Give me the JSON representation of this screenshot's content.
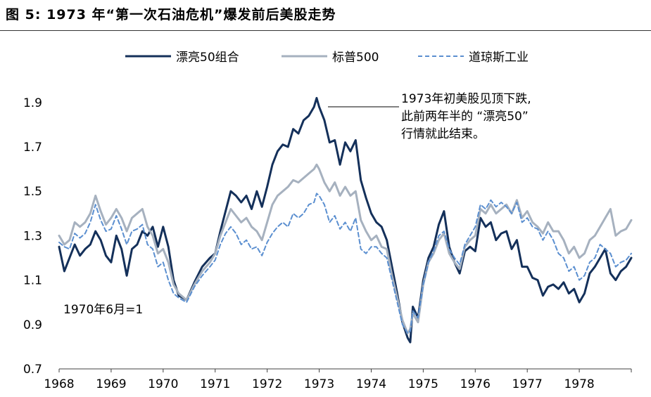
{
  "figure": {
    "label": "图 5:",
    "title": "1973 年“第一次石油危机”爆发前后美股走势"
  },
  "chart_data": {
    "type": "line",
    "title": "1973 年“第一次石油危机”爆发前后美股走势",
    "xlabel": "",
    "ylabel": "",
    "x_ticks": [
      "1968",
      "1969",
      "1970",
      "1971",
      "1972",
      "1973",
      "1974",
      "1975",
      "1976",
      "1977",
      "1978"
    ],
    "y_ticks": [
      "0.7",
      "0.9",
      "1.1",
      "1.3",
      "1.5",
      "1.7",
      "1.9"
    ],
    "xlim": [
      1968.0,
      1979.0
    ],
    "ylim": [
      0.7,
      1.95
    ],
    "grid": false,
    "legend_position": "top",
    "annotations": [
      {
        "lines": [
          "1973年初美股见顶下跌,",
          "此前两年半的 “漂亮50”",
          "行情就此结束。"
        ],
        "x": 1972.95,
        "y": 1.84
      },
      {
        "lines": [
          "1970年6月=1"
        ],
        "x": 1968.1,
        "y": 0.98
      }
    ],
    "series": [
      {
        "name": "漂亮50组合",
        "color": "#14305a",
        "dash": "solid",
        "width": 3,
        "x": [
          1968.0,
          1968.1,
          1968.2,
          1968.3,
          1968.4,
          1968.5,
          1968.6,
          1968.7,
          1968.8,
          1968.9,
          1969.0,
          1969.1,
          1969.2,
          1969.3,
          1969.4,
          1969.5,
          1969.6,
          1969.7,
          1969.8,
          1969.9,
          1970.0,
          1970.1,
          1970.2,
          1970.3,
          1970.45,
          1970.6,
          1970.75,
          1970.9,
          1971.0,
          1971.1,
          1971.2,
          1971.3,
          1971.4,
          1971.5,
          1971.6,
          1971.7,
          1971.8,
          1971.9,
          1972.0,
          1972.1,
          1972.2,
          1972.3,
          1972.4,
          1972.5,
          1972.6,
          1972.7,
          1972.8,
          1972.9,
          1972.95,
          1973.0,
          1973.1,
          1973.2,
          1973.3,
          1973.4,
          1973.5,
          1973.6,
          1973.7,
          1973.8,
          1973.9,
          1974.0,
          1974.1,
          1974.2,
          1974.3,
          1974.4,
          1974.5,
          1974.6,
          1974.7,
          1974.75,
          1974.8,
          1974.9,
          1975.0,
          1975.1,
          1975.2,
          1975.3,
          1975.4,
          1975.5,
          1975.6,
          1975.7,
          1975.8,
          1975.9,
          1976.0,
          1976.1,
          1976.2,
          1976.3,
          1976.4,
          1976.5,
          1976.6,
          1976.7,
          1976.8,
          1976.9,
          1977.0,
          1977.1,
          1977.2,
          1977.3,
          1977.4,
          1977.5,
          1977.6,
          1977.7,
          1977.8,
          1977.9,
          1978.0,
          1978.1,
          1978.2,
          1978.3,
          1978.4,
          1978.5,
          1978.6,
          1978.7,
          1978.8,
          1978.9,
          1979.0
        ],
        "y": [
          1.25,
          1.14,
          1.2,
          1.26,
          1.21,
          1.24,
          1.26,
          1.32,
          1.28,
          1.21,
          1.18,
          1.3,
          1.24,
          1.12,
          1.24,
          1.26,
          1.32,
          1.3,
          1.34,
          1.25,
          1.34,
          1.25,
          1.1,
          1.03,
          1.01,
          1.09,
          1.16,
          1.2,
          1.22,
          1.32,
          1.41,
          1.5,
          1.48,
          1.45,
          1.48,
          1.42,
          1.5,
          1.43,
          1.52,
          1.62,
          1.68,
          1.71,
          1.7,
          1.78,
          1.76,
          1.82,
          1.84,
          1.88,
          1.92,
          1.88,
          1.82,
          1.72,
          1.73,
          1.62,
          1.72,
          1.68,
          1.73,
          1.55,
          1.47,
          1.4,
          1.36,
          1.34,
          1.28,
          1.16,
          1.04,
          0.91,
          0.84,
          0.82,
          0.98,
          0.93,
          1.1,
          1.2,
          1.25,
          1.35,
          1.41,
          1.25,
          1.18,
          1.13,
          1.23,
          1.25,
          1.23,
          1.38,
          1.34,
          1.36,
          1.28,
          1.31,
          1.32,
          1.24,
          1.28,
          1.16,
          1.16,
          1.11,
          1.1,
          1.03,
          1.07,
          1.08,
          1.06,
          1.09,
          1.04,
          1.06,
          1.0,
          1.04,
          1.13,
          1.16,
          1.2,
          1.24,
          1.13,
          1.1,
          1.14,
          1.16,
          1.2
        ]
      },
      {
        "name": "标普500",
        "color": "#a6b1bf",
        "dash": "solid",
        "width": 3,
        "x": [
          1968.0,
          1968.1,
          1968.2,
          1968.3,
          1968.4,
          1968.5,
          1968.6,
          1968.7,
          1968.8,
          1968.9,
          1969.0,
          1969.1,
          1969.2,
          1969.3,
          1969.4,
          1969.5,
          1969.6,
          1969.7,
          1969.8,
          1969.9,
          1970.0,
          1970.1,
          1970.2,
          1970.3,
          1970.45,
          1970.6,
          1970.75,
          1970.9,
          1971.0,
          1971.1,
          1971.2,
          1971.3,
          1971.4,
          1971.5,
          1971.6,
          1971.7,
          1971.8,
          1971.9,
          1972.0,
          1972.1,
          1972.2,
          1972.3,
          1972.4,
          1972.5,
          1972.6,
          1972.7,
          1972.8,
          1972.9,
          1972.95,
          1973.0,
          1973.1,
          1973.2,
          1973.3,
          1973.4,
          1973.5,
          1973.6,
          1973.7,
          1973.8,
          1973.9,
          1974.0,
          1974.1,
          1974.2,
          1974.3,
          1974.4,
          1974.5,
          1974.6,
          1974.7,
          1974.75,
          1974.8,
          1974.9,
          1975.0,
          1975.1,
          1975.2,
          1975.3,
          1975.4,
          1975.5,
          1975.6,
          1975.7,
          1975.8,
          1975.9,
          1976.0,
          1976.1,
          1976.2,
          1976.3,
          1976.4,
          1976.5,
          1976.6,
          1976.7,
          1976.8,
          1976.9,
          1977.0,
          1977.1,
          1977.2,
          1977.3,
          1977.4,
          1977.5,
          1977.6,
          1977.7,
          1977.8,
          1977.9,
          1978.0,
          1978.1,
          1978.2,
          1978.3,
          1978.4,
          1978.5,
          1978.6,
          1978.7,
          1978.8,
          1978.9,
          1979.0
        ],
        "y": [
          1.3,
          1.26,
          1.28,
          1.36,
          1.34,
          1.36,
          1.4,
          1.48,
          1.41,
          1.35,
          1.38,
          1.42,
          1.38,
          1.32,
          1.38,
          1.4,
          1.42,
          1.34,
          1.3,
          1.22,
          1.24,
          1.18,
          1.08,
          1.04,
          1.01,
          1.08,
          1.14,
          1.18,
          1.22,
          1.3,
          1.36,
          1.42,
          1.39,
          1.36,
          1.38,
          1.34,
          1.32,
          1.28,
          1.36,
          1.44,
          1.48,
          1.5,
          1.52,
          1.55,
          1.54,
          1.56,
          1.58,
          1.6,
          1.62,
          1.6,
          1.54,
          1.5,
          1.54,
          1.48,
          1.52,
          1.48,
          1.5,
          1.37,
          1.32,
          1.28,
          1.3,
          1.25,
          1.24,
          1.12,
          1.02,
          0.92,
          0.86,
          0.88,
          0.95,
          0.91,
          1.08,
          1.18,
          1.22,
          1.28,
          1.31,
          1.22,
          1.18,
          1.15,
          1.25,
          1.28,
          1.3,
          1.42,
          1.4,
          1.44,
          1.4,
          1.42,
          1.44,
          1.4,
          1.46,
          1.38,
          1.41,
          1.36,
          1.34,
          1.31,
          1.36,
          1.32,
          1.32,
          1.28,
          1.22,
          1.25,
          1.2,
          1.22,
          1.28,
          1.3,
          1.34,
          1.38,
          1.42,
          1.3,
          1.32,
          1.33,
          1.37
        ]
      },
      {
        "name": "道琼斯工业",
        "color": "#5b8fd0",
        "dash": "dashed",
        "width": 2,
        "x": [
          1968.0,
          1968.1,
          1968.2,
          1968.3,
          1968.4,
          1968.5,
          1968.6,
          1968.7,
          1968.8,
          1968.9,
          1969.0,
          1969.1,
          1969.2,
          1969.3,
          1969.4,
          1969.5,
          1969.6,
          1969.7,
          1969.8,
          1969.9,
          1970.0,
          1970.1,
          1970.2,
          1970.3,
          1970.45,
          1970.6,
          1970.75,
          1970.9,
          1971.0,
          1971.1,
          1971.2,
          1971.3,
          1971.4,
          1971.5,
          1971.6,
          1971.7,
          1971.8,
          1971.9,
          1972.0,
          1972.1,
          1972.2,
          1972.3,
          1972.4,
          1972.5,
          1972.6,
          1972.7,
          1972.8,
          1972.9,
          1972.95,
          1973.0,
          1973.1,
          1973.2,
          1973.3,
          1973.4,
          1973.5,
          1973.6,
          1973.7,
          1973.8,
          1973.9,
          1974.0,
          1974.1,
          1974.2,
          1974.3,
          1974.4,
          1974.5,
          1974.6,
          1974.7,
          1974.75,
          1974.8,
          1974.9,
          1975.0,
          1975.1,
          1975.2,
          1975.3,
          1975.4,
          1975.5,
          1975.6,
          1975.7,
          1975.8,
          1975.9,
          1976.0,
          1976.1,
          1976.2,
          1976.3,
          1976.4,
          1976.5,
          1976.6,
          1976.7,
          1976.8,
          1976.9,
          1977.0,
          1977.1,
          1977.2,
          1977.3,
          1977.4,
          1977.5,
          1977.6,
          1977.7,
          1977.8,
          1977.9,
          1978.0,
          1978.1,
          1978.2,
          1978.3,
          1978.4,
          1978.5,
          1978.6,
          1978.7,
          1978.8,
          1978.9,
          1979.0
        ],
        "y": [
          1.27,
          1.25,
          1.24,
          1.31,
          1.29,
          1.31,
          1.36,
          1.44,
          1.37,
          1.32,
          1.33,
          1.39,
          1.33,
          1.26,
          1.32,
          1.33,
          1.35,
          1.26,
          1.24,
          1.16,
          1.18,
          1.1,
          1.04,
          1.02,
          1.0,
          1.07,
          1.12,
          1.16,
          1.19,
          1.26,
          1.31,
          1.34,
          1.31,
          1.26,
          1.28,
          1.24,
          1.25,
          1.21,
          1.27,
          1.31,
          1.34,
          1.36,
          1.34,
          1.4,
          1.38,
          1.4,
          1.44,
          1.45,
          1.49,
          1.48,
          1.44,
          1.36,
          1.39,
          1.33,
          1.36,
          1.32,
          1.38,
          1.24,
          1.22,
          1.25,
          1.25,
          1.22,
          1.2,
          1.1,
          1.0,
          0.9,
          0.86,
          0.87,
          0.96,
          0.93,
          1.08,
          1.18,
          1.23,
          1.3,
          1.32,
          1.24,
          1.2,
          1.17,
          1.26,
          1.3,
          1.34,
          1.44,
          1.42,
          1.46,
          1.43,
          1.45,
          1.43,
          1.4,
          1.45,
          1.36,
          1.38,
          1.34,
          1.33,
          1.28,
          1.32,
          1.28,
          1.22,
          1.2,
          1.14,
          1.16,
          1.1,
          1.12,
          1.18,
          1.2,
          1.26,
          1.24,
          1.22,
          1.16,
          1.18,
          1.19,
          1.22
        ]
      }
    ]
  }
}
